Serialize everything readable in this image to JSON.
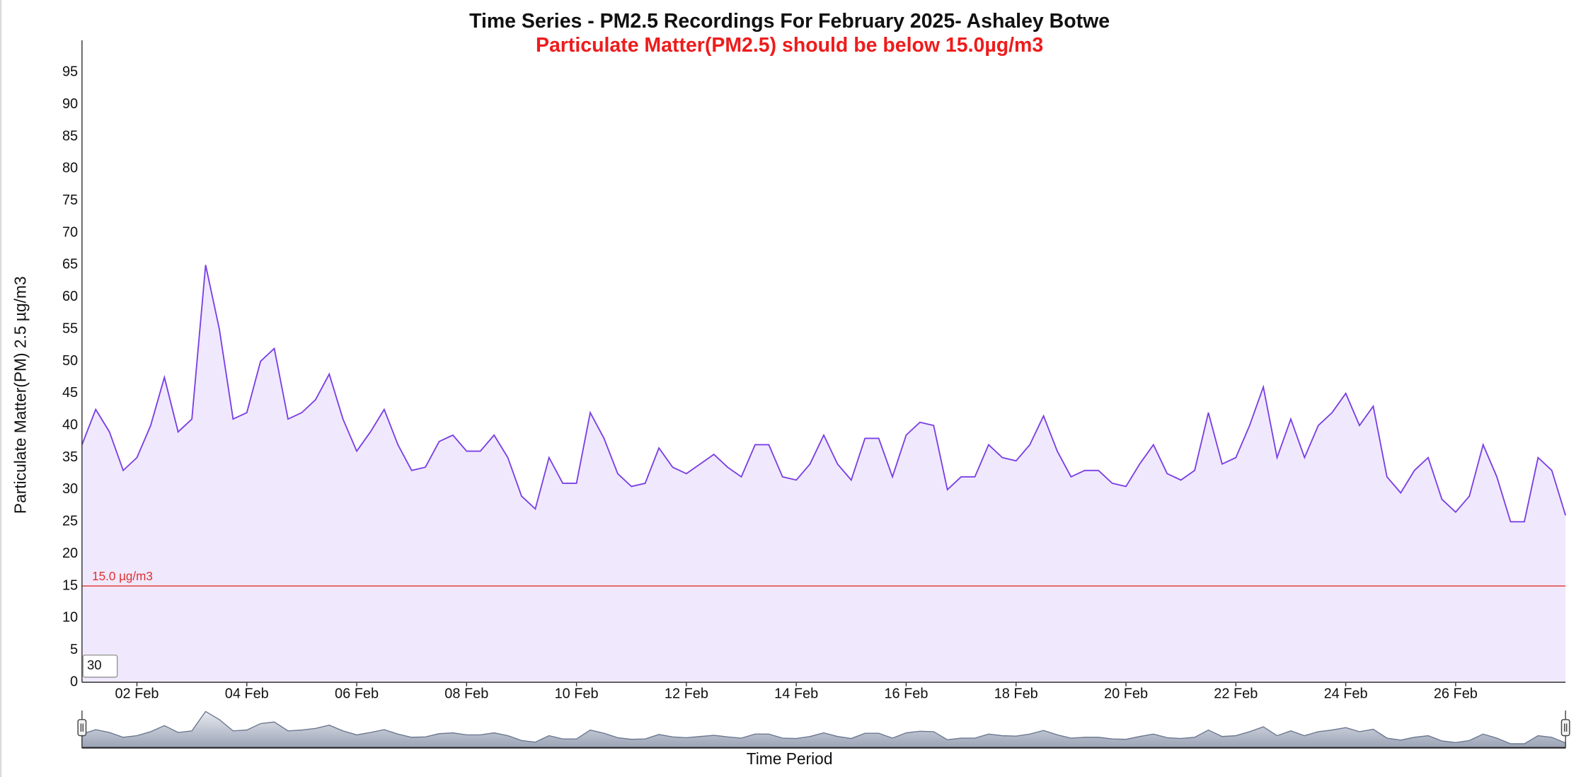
{
  "chart_data": {
    "type": "area",
    "title": "Time Series - PM2.5 Recordings For February 2025- Ashaley Botwe",
    "subtitle": "Particulate Matter(PM2.5) should be below 15.0µg/m3",
    "y_label": "Particulate Matter(PM) 2.5 µg/m3",
    "x_label": "Time Period",
    "input_value": "30",
    "threshold": {
      "value": 15,
      "label": "15.0 µg/m3",
      "color": "#e03030"
    },
    "xlim": [
      1,
      28
    ],
    "xticks": [
      {
        "value": 2,
        "label": "02 Feb"
      },
      {
        "value": 4,
        "label": "04 Feb"
      },
      {
        "value": 6,
        "label": "06 Feb"
      },
      {
        "value": 8,
        "label": "08 Feb"
      },
      {
        "value": 10,
        "label": "10 Feb"
      },
      {
        "value": 12,
        "label": "12 Feb"
      },
      {
        "value": 14,
        "label": "14 Feb"
      },
      {
        "value": 16,
        "label": "16 Feb"
      },
      {
        "value": 18,
        "label": "18 Feb"
      },
      {
        "value": 20,
        "label": "20 Feb"
      },
      {
        "value": 22,
        "label": "22 Feb"
      },
      {
        "value": 24,
        "label": "24 Feb"
      },
      {
        "value": 26,
        "label": "26 Feb"
      }
    ],
    "ylim": [
      0,
      100
    ],
    "yticks": [
      0,
      5,
      10,
      15,
      20,
      25,
      30,
      35,
      40,
      45,
      50,
      55,
      60,
      65,
      70,
      75,
      80,
      85,
      90,
      95
    ],
    "grid": false,
    "x": [
      1,
      1.25,
      1.5,
      1.75,
      2,
      2.25,
      2.5,
      2.75,
      3,
      3.25,
      3.5,
      3.75,
      4,
      4.25,
      4.5,
      4.75,
      5,
      5.25,
      5.5,
      5.75,
      6,
      6.25,
      6.5,
      6.75,
      7,
      7.25,
      7.5,
      7.75,
      8,
      8.25,
      8.5,
      8.75,
      9,
      9.25,
      9.5,
      9.75,
      10,
      10.25,
      10.5,
      10.75,
      11,
      11.25,
      11.5,
      11.75,
      12,
      12.25,
      12.5,
      12.75,
      13,
      13.25,
      13.5,
      13.75,
      14,
      14.25,
      14.5,
      14.75,
      15,
      15.25,
      15.5,
      15.75,
      16,
      16.25,
      16.5,
      16.75,
      17,
      17.25,
      17.5,
      17.75,
      18,
      18.25,
      18.5,
      18.75,
      19,
      19.25,
      19.5,
      19.75,
      20,
      20.25,
      20.5,
      20.75,
      21,
      21.25,
      21.5,
      21.75,
      22,
      22.25,
      22.5,
      22.75,
      23,
      23.25,
      23.5,
      23.75,
      24,
      24.25,
      24.5,
      24.75,
      25,
      25.25,
      25.5,
      25.75,
      26,
      26.25,
      26.5,
      26.75,
      27,
      27.25,
      27.5,
      27.75,
      28
    ],
    "series": [
      {
        "name": "PM2.5",
        "color": "#7b3fe4",
        "fill": "#f0e9fd",
        "values": [
          37,
          42.5,
          39,
          33,
          35,
          40,
          47.5,
          39,
          41,
          65,
          55,
          41,
          42,
          50,
          52,
          41,
          42,
          44,
          48,
          41,
          36,
          39,
          42.5,
          37,
          33,
          33.5,
          37.5,
          38.5,
          36,
          36,
          38.5,
          35,
          29,
          27,
          35,
          31,
          31,
          42,
          38,
          32.5,
          30.5,
          31,
          36.5,
          33.5,
          32.5,
          34,
          35.5,
          33.5,
          32,
          37,
          37,
          32,
          31.5,
          34,
          38.5,
          34,
          31.5,
          38,
          38,
          32,
          38.5,
          40.5,
          40,
          30,
          32,
          32,
          37,
          35,
          34.5,
          37,
          41.5,
          36,
          32,
          33,
          33,
          31,
          30.5,
          34,
          37,
          32.5,
          31.5,
          33,
          42,
          34,
          35,
          40,
          46,
          35,
          41,
          35,
          40,
          42,
          45,
          40,
          43,
          32,
          29.5,
          33,
          35,
          28.5,
          26.5,
          29,
          37,
          32,
          25,
          25,
          35,
          33,
          26
        ]
      }
    ]
  }
}
